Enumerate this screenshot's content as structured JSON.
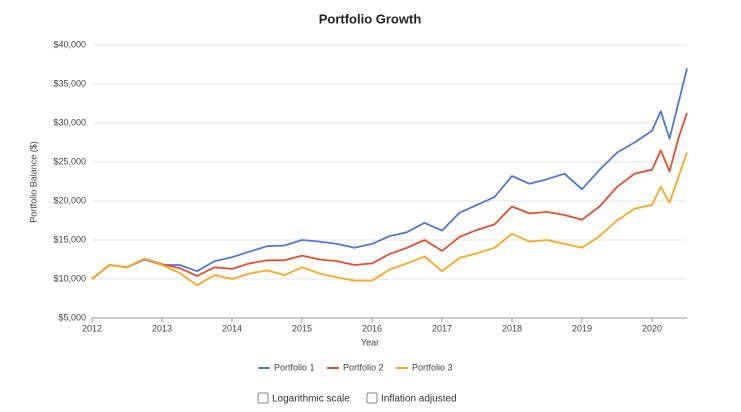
{
  "chart_data": {
    "type": "line",
    "title": "Portfolio Growth",
    "x_label": "Year",
    "y_label": "Portfolio Balance ($)",
    "x": [
      2012,
      2012.25,
      2012.5,
      2012.75,
      2013,
      2013.25,
      2013.5,
      2013.75,
      2014,
      2014.25,
      2014.5,
      2014.75,
      2015,
      2015.25,
      2015.5,
      2015.75,
      2016,
      2016.25,
      2016.5,
      2016.75,
      2017,
      2017.25,
      2017.5,
      2017.75,
      2018,
      2018.25,
      2018.5,
      2018.75,
      2019,
      2019.25,
      2019.5,
      2019.75,
      2020,
      2020.125,
      2020.25,
      2020.375,
      2020.5
    ],
    "series": [
      {
        "name": "Portfolio 1",
        "color": "#4e79d6",
        "values": [
          10000,
          11800,
          11500,
          12500,
          11800,
          11800,
          11000,
          12300,
          12800,
          13500,
          14200,
          14300,
          15000,
          14800,
          14500,
          14000,
          14500,
          15500,
          16000,
          17200,
          16200,
          18500,
          19500,
          20500,
          23200,
          22200,
          22800,
          23500,
          21500,
          24000,
          26200,
          27500,
          29000,
          31500,
          28000,
          32500,
          37000
        ]
      },
      {
        "name": "Portfolio 2",
        "color": "#e0522e",
        "values": [
          10000,
          11800,
          11500,
          12600,
          11900,
          11400,
          10400,
          11500,
          11300,
          12000,
          12400,
          12400,
          13000,
          12500,
          12300,
          11800,
          12000,
          13200,
          14000,
          15000,
          13600,
          15400,
          16300,
          17000,
          19300,
          18400,
          18600,
          18200,
          17600,
          19300,
          21800,
          23500,
          24000,
          26500,
          23800,
          28000,
          31300
        ]
      },
      {
        "name": "Portfolio 3",
        "color": "#f9a825",
        "values": [
          10000,
          11800,
          11500,
          12600,
          11800,
          10800,
          9200,
          10500,
          10000,
          10700,
          11100,
          10500,
          11500,
          10700,
          10200,
          9800,
          9800,
          11200,
          12000,
          12900,
          11000,
          12700,
          13300,
          14000,
          15800,
          14800,
          15000,
          14500,
          14000,
          15500,
          17500,
          19000,
          19500,
          21800,
          19800,
          23000,
          26200
        ]
      }
    ],
    "xlim": [
      2012,
      2020.5
    ],
    "xticks": [
      2012,
      2013,
      2014,
      2015,
      2016,
      2017,
      2018,
      2019,
      2020
    ],
    "ylim": [
      5000,
      40000
    ],
    "yticks": [
      {
        "value": 5000,
        "label": "$5,000"
      },
      {
        "value": 10000,
        "label": "$10,000"
      },
      {
        "value": 15000,
        "label": "$15,000"
      },
      {
        "value": 20000,
        "label": "$20,000"
      },
      {
        "value": 25000,
        "label": "$25,000"
      },
      {
        "value": 30000,
        "label": "$30,000"
      },
      {
        "value": 35000,
        "label": "$35,000"
      },
      {
        "value": 40000,
        "label": "$40,000"
      }
    ],
    "grid": true
  },
  "controls": [
    "Logarithmic scale",
    "Inflation adjusted"
  ]
}
